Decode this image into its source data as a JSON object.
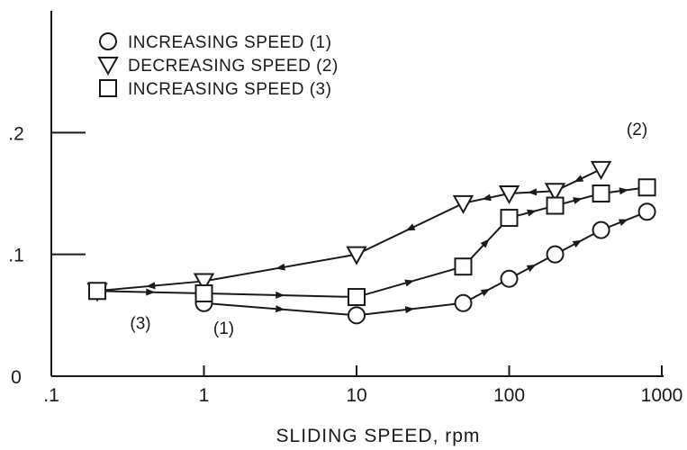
{
  "chart_data": {
    "type": "line",
    "xlabel": "SLIDING SPEED, rpm",
    "ylabel": "",
    "x_scale": "log",
    "xlim": [
      0.1,
      1000
    ],
    "ylim": [
      0,
      0.3
    ],
    "x_ticks": [
      ".1",
      "1",
      "10",
      "100",
      "1000"
    ],
    "y_ticks": [
      "0",
      ".1",
      ".2"
    ],
    "grid": false,
    "legend_position": "top-left",
    "series": [
      {
        "name": "INCREASING SPEED (1)",
        "marker": "circle",
        "annotation": "(1)",
        "x": [
          1,
          10,
          50,
          100,
          200,
          400,
          800
        ],
        "y": [
          0.06,
          0.05,
          0.06,
          0.08,
          0.1,
          0.12,
          0.135
        ]
      },
      {
        "name": "DECREASING SPEED (2)",
        "marker": "triangle-down",
        "annotation": "(2)",
        "x": [
          400,
          200,
          100,
          50,
          10,
          1,
          0.2
        ],
        "y": [
          0.17,
          0.152,
          0.15,
          0.142,
          0.1,
          0.078,
          0.07
        ]
      },
      {
        "name": "INCREASING SPEED (3)",
        "marker": "square",
        "annotation": "(3)",
        "x": [
          0.2,
          1,
          10,
          50,
          100,
          200,
          400,
          800
        ],
        "y": [
          0.07,
          0.068,
          0.065,
          0.09,
          0.13,
          0.14,
          0.15,
          0.155
        ]
      }
    ]
  }
}
